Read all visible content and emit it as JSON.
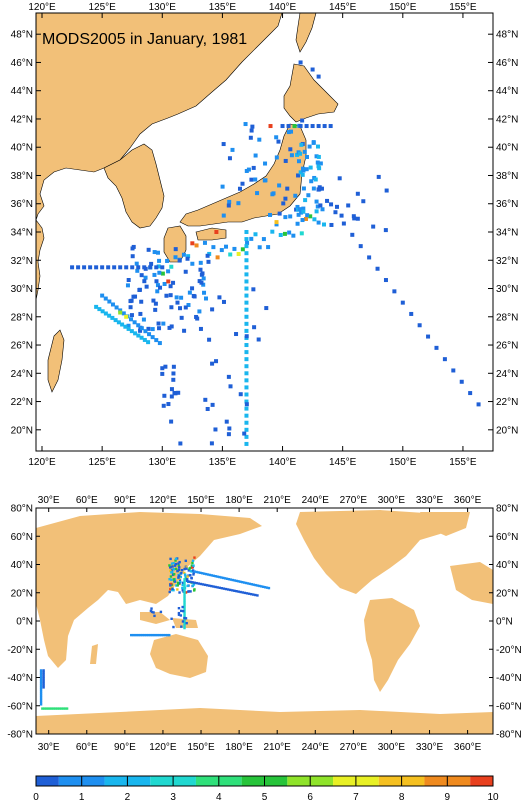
{
  "top_map": {
    "title": "MODS2005 in January, 1981",
    "lon_labels": [
      "120°E",
      "125°E",
      "130°E",
      "135°E",
      "140°E",
      "145°E",
      "150°E",
      "155°E"
    ],
    "lat_labels": [
      "20°N",
      "22°N",
      "24°N",
      "26°N",
      "28°N",
      "30°N",
      "32°N",
      "34°N",
      "36°N",
      "38°N",
      "40°N",
      "42°N",
      "44°N",
      "46°N",
      "48°N"
    ],
    "lon_range": [
      119.5,
      157.5
    ],
    "lat_range": [
      18.5,
      49.5
    ]
  },
  "global_map": {
    "lon_labels": [
      "30°E",
      "60°E",
      "90°E",
      "120°E",
      "150°E",
      "180°E",
      "210°E",
      "240°E",
      "270°E",
      "300°E",
      "330°E",
      "360°E"
    ],
    "lat_labels": [
      "-80°N",
      "-60°N",
      "-40°N",
      "-20°N",
      "0°N",
      "20°N",
      "40°N",
      "60°N",
      "80°N"
    ],
    "lon_range": [
      20,
      380
    ],
    "lat_range": [
      -80,
      80
    ]
  },
  "colorbar": {
    "labels": [
      "0",
      "1",
      "2",
      "3",
      "4",
      "5",
      "6",
      "7",
      "8",
      "9",
      "10"
    ],
    "colors": [
      "#1f5fd6",
      "#1e8ff0",
      "#19b6ee",
      "#20d8d0",
      "#2fe07a",
      "#27c43a",
      "#8fe32a",
      "#e8f025",
      "#f5c020",
      "#ef8a1e",
      "#e8401e"
    ]
  },
  "colors": {
    "land": "#f2c078",
    "ocean": "#ffffff",
    "frame": "#000000"
  }
}
